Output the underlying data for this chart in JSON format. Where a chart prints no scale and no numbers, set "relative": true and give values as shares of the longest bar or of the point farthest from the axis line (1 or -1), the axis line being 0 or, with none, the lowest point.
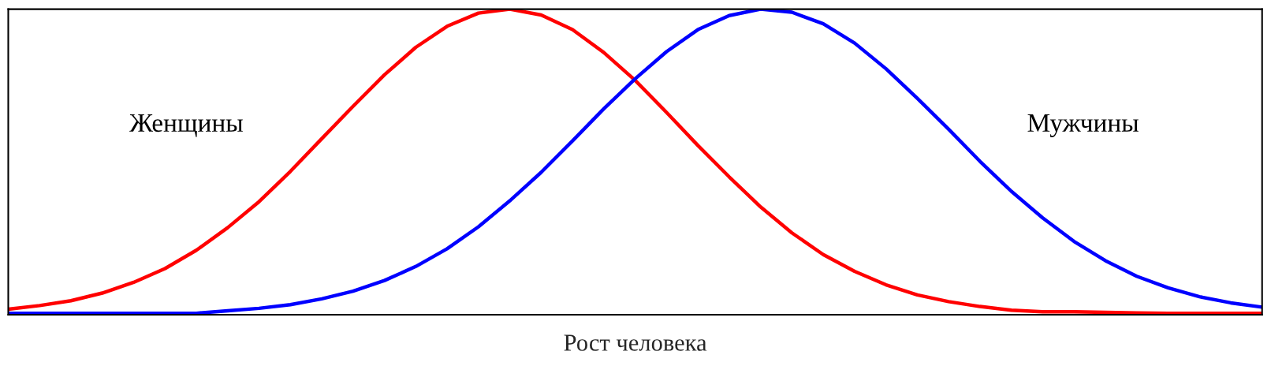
{
  "chart_data": {
    "type": "line",
    "relative": true,
    "xlabel": "Рост человека",
    "legend": false,
    "grid": false,
    "marker": "none",
    "line_style": "solid",
    "categories": [
      null,
      null,
      null,
      null,
      null,
      null,
      null,
      null,
      null,
      null,
      null,
      null,
      null,
      null,
      null,
      null,
      null,
      null,
      null,
      null,
      null,
      null,
      null,
      null,
      null,
      null,
      null,
      null,
      null,
      null,
      null,
      null,
      null,
      null,
      null,
      null,
      null,
      null,
      null,
      null,
      null
    ],
    "series": [
      {
        "name": "Женщины",
        "color": "#ff0000",
        "values": [
          0.018,
          0.03,
          0.046,
          0.071,
          0.106,
          0.151,
          0.211,
          0.285,
          0.37,
          0.469,
          0.576,
          0.682,
          0.785,
          0.875,
          0.944,
          0.987,
          1.0,
          0.981,
          0.933,
          0.858,
          0.767,
          0.662,
          0.554,
          0.451,
          0.353,
          0.268,
          0.197,
          0.142,
          0.098,
          0.065,
          0.043,
          0.027,
          0.015,
          0.01,
          0.01,
          0.008,
          0.006,
          0.005,
          0.005,
          0.005,
          0.005
        ]
      },
      {
        "name": "Мужчины",
        "color": "#0000ff",
        "values": [
          0.005,
          0.005,
          0.005,
          0.005,
          0.005,
          0.005,
          0.005,
          0.013,
          0.021,
          0.033,
          0.052,
          0.077,
          0.112,
          0.158,
          0.216,
          0.288,
          0.373,
          0.466,
          0.569,
          0.674,
          0.772,
          0.861,
          0.933,
          0.979,
          1.0,
          0.99,
          0.952,
          0.889,
          0.805,
          0.708,
          0.607,
          0.502,
          0.404,
          0.317,
          0.24,
          0.177,
          0.126,
          0.088,
          0.059,
          0.039,
          0.025
        ]
      }
    ]
  }
}
